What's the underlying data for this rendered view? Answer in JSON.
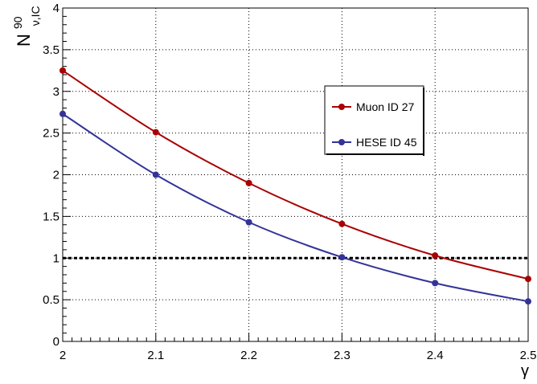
{
  "chart_data": {
    "type": "line",
    "title": "",
    "xlabel": "γ",
    "ylabel": {
      "base": "N",
      "sup": "90",
      "sub": "ν,IC"
    },
    "xlim": [
      2.0,
      2.5
    ],
    "ylim": [
      0,
      4
    ],
    "x_ticks": [
      2.0,
      2.1,
      2.2,
      2.3,
      2.4,
      2.5
    ],
    "x_tick_labels": [
      "2",
      "2.1",
      "2.2",
      "2.3",
      "2.4",
      "2.5"
    ],
    "y_ticks": [
      0,
      0.5,
      1,
      1.5,
      2,
      2.5,
      3,
      3.5,
      4
    ],
    "y_tick_labels": [
      "0",
      "0.5",
      "1",
      "1.5",
      "2",
      "2.5",
      "3",
      "3.5",
      "4"
    ],
    "grid": true,
    "legend_position": "center-right",
    "reference_line": {
      "y": 1,
      "style": "dashed",
      "color": "#000000"
    },
    "x": [
      2.0,
      2.1,
      2.2,
      2.3,
      2.4,
      2.5
    ],
    "series": [
      {
        "name": "Muon ID 27",
        "color": "#aa0000",
        "values": [
          3.25,
          2.51,
          1.9,
          1.41,
          1.03,
          0.75
        ]
      },
      {
        "name": "HESE ID 45",
        "color": "#333399",
        "values": [
          2.73,
          2.0,
          1.43,
          1.01,
          0.7,
          0.48
        ]
      }
    ]
  }
}
